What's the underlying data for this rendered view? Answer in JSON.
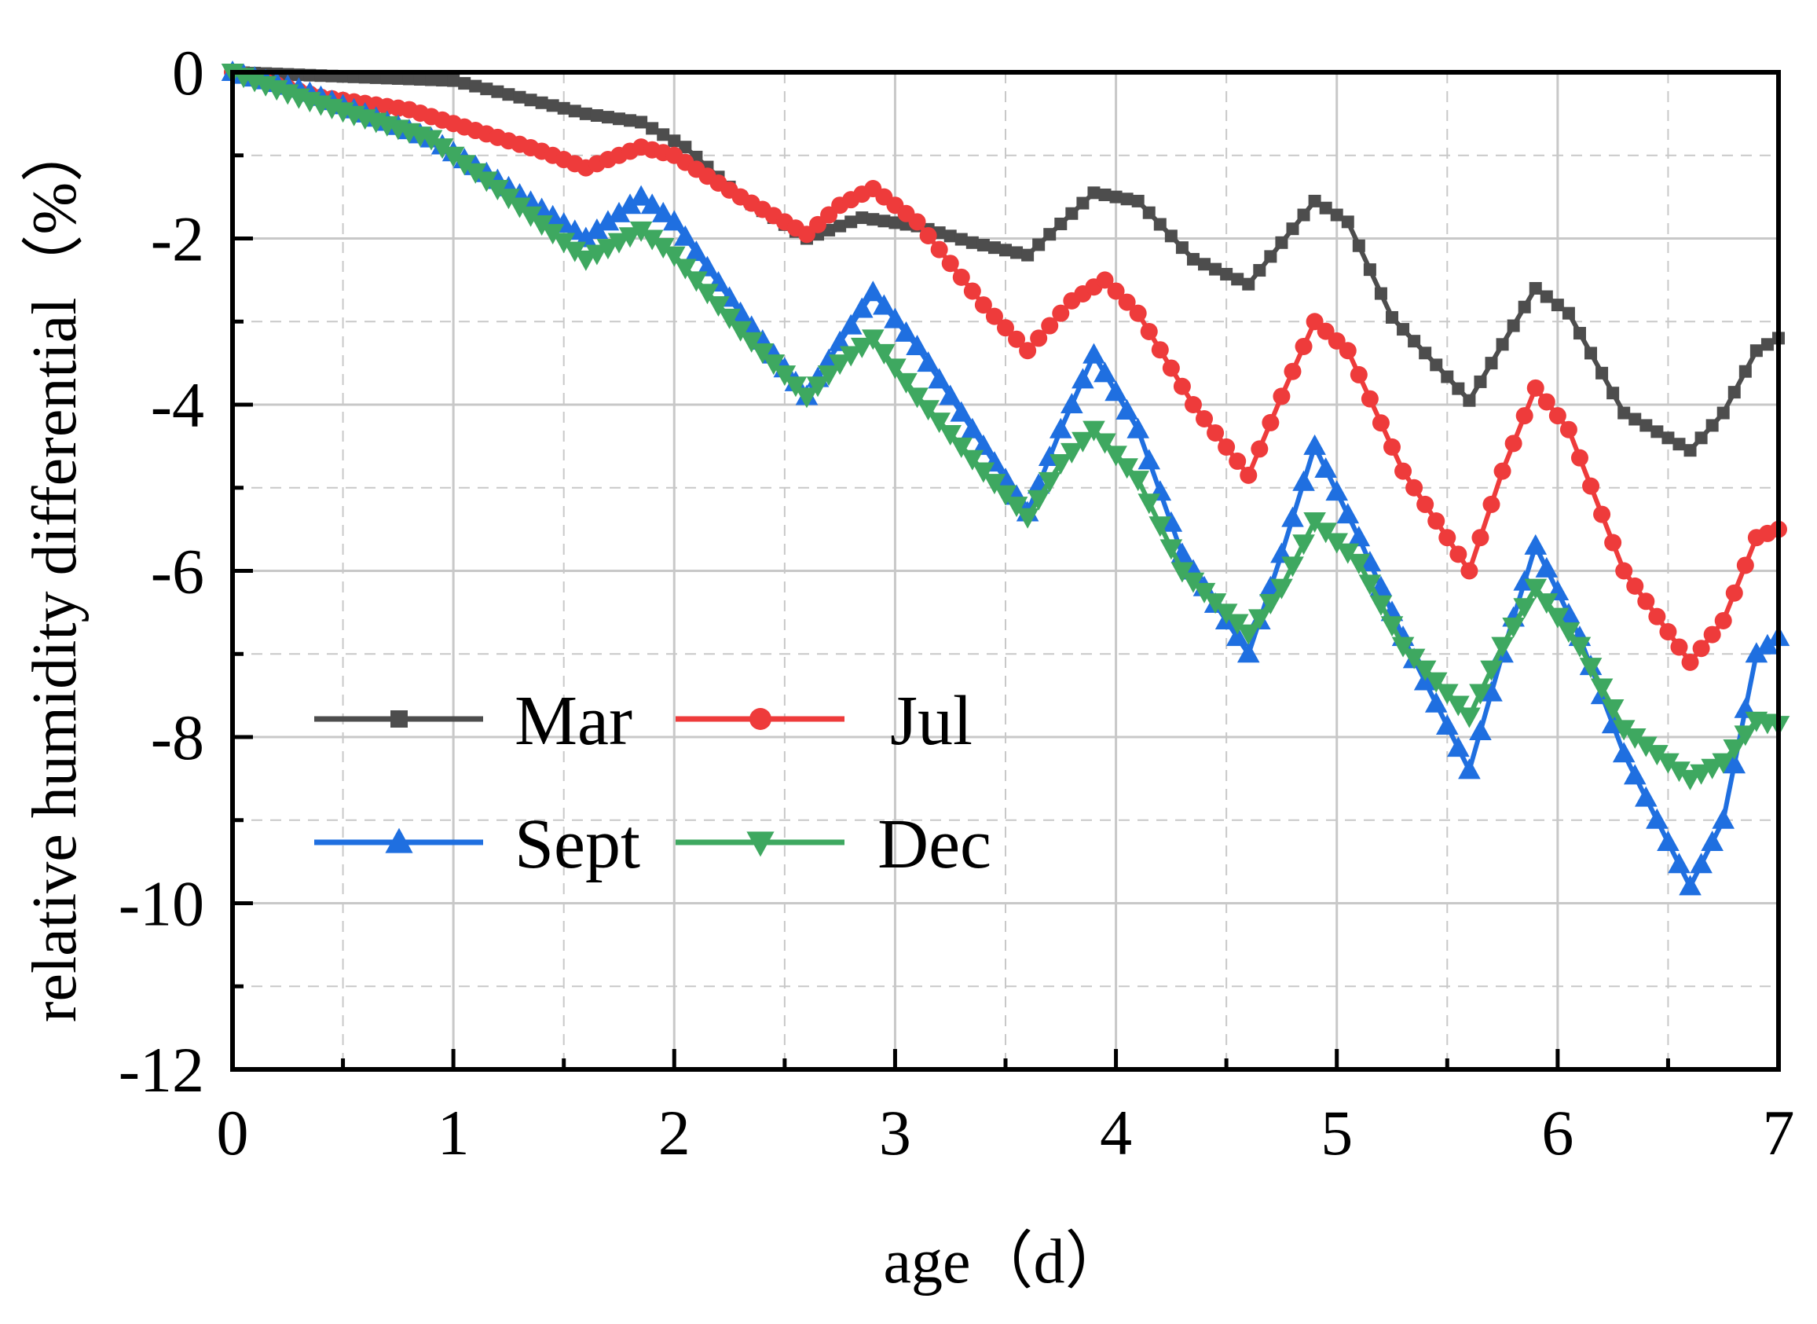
{
  "chart_data": {
    "type": "line",
    "title": "",
    "xlabel": "age（d）",
    "ylabel": "relative humidity differential（%）",
    "xlim": [
      0,
      7
    ],
    "ylim": [
      -12,
      0
    ],
    "xticks": [
      "0",
      "1",
      "2",
      "3",
      "4",
      "5",
      "6",
      "7"
    ],
    "yticks": [
      "0",
      "-2",
      "-4",
      "-6",
      "-8",
      "-10",
      "-12"
    ],
    "grid": true,
    "legend_position": "lower-left",
    "series": [
      {
        "name": "Mar",
        "color": "#4d4d4d",
        "marker": "square",
        "points": [
          [
            0,
            0
          ],
          [
            0.5,
            -0.05
          ],
          [
            1,
            -0.1
          ],
          [
            1.3,
            -0.3
          ],
          [
            1.6,
            -0.5
          ],
          [
            1.85,
            -0.6
          ],
          [
            2.05,
            -0.9
          ],
          [
            2.3,
            -1.5
          ],
          [
            2.6,
            -2.0
          ],
          [
            2.85,
            -1.75
          ],
          [
            3.1,
            -1.85
          ],
          [
            3.35,
            -2.05
          ],
          [
            3.6,
            -2.2
          ],
          [
            3.9,
            -1.45
          ],
          [
            4.1,
            -1.55
          ],
          [
            4.35,
            -2.25
          ],
          [
            4.6,
            -2.55
          ],
          [
            4.9,
            -1.55
          ],
          [
            5.05,
            -1.8
          ],
          [
            5.25,
            -2.95
          ],
          [
            5.6,
            -3.95
          ],
          [
            5.9,
            -2.6
          ],
          [
            6.05,
            -2.9
          ],
          [
            6.3,
            -4.1
          ],
          [
            6.6,
            -4.55
          ],
          [
            6.75,
            -4.1
          ],
          [
            6.9,
            -3.35
          ],
          [
            7,
            -3.2
          ]
        ]
      },
      {
        "name": "Jul",
        "color": "#ee3b3b",
        "marker": "circle",
        "points": [
          [
            0,
            0
          ],
          [
            0.4,
            -0.3
          ],
          [
            0.8,
            -0.45
          ],
          [
            1.1,
            -0.7
          ],
          [
            1.4,
            -0.95
          ],
          [
            1.6,
            -1.15
          ],
          [
            1.85,
            -0.9
          ],
          [
            2.0,
            -1.0
          ],
          [
            2.3,
            -1.5
          ],
          [
            2.6,
            -1.95
          ],
          [
            2.75,
            -1.6
          ],
          [
            2.9,
            -1.4
          ],
          [
            3.1,
            -1.8
          ],
          [
            3.4,
            -2.8
          ],
          [
            3.6,
            -3.35
          ],
          [
            3.8,
            -2.75
          ],
          [
            3.95,
            -2.5
          ],
          [
            4.1,
            -2.9
          ],
          [
            4.35,
            -4.0
          ],
          [
            4.6,
            -4.85
          ],
          [
            4.75,
            -3.9
          ],
          [
            4.9,
            -3.0
          ],
          [
            5.05,
            -3.35
          ],
          [
            5.3,
            -4.8
          ],
          [
            5.6,
            -6.0
          ],
          [
            5.75,
            -4.8
          ],
          [
            5.9,
            -3.8
          ],
          [
            6.05,
            -4.3
          ],
          [
            6.3,
            -6.0
          ],
          [
            6.6,
            -7.1
          ],
          [
            6.75,
            -6.6
          ],
          [
            6.9,
            -5.6
          ],
          [
            7,
            -5.5
          ]
        ]
      },
      {
        "name": "Sept",
        "color": "#1f6fe0",
        "marker": "triangle-up",
        "points": [
          [
            0,
            0
          ],
          [
            0.3,
            -0.2
          ],
          [
            0.6,
            -0.5
          ],
          [
            0.9,
            -0.8
          ],
          [
            1.2,
            -1.3
          ],
          [
            1.6,
            -2.0
          ],
          [
            1.85,
            -1.5
          ],
          [
            2.0,
            -1.8
          ],
          [
            2.3,
            -2.9
          ],
          [
            2.6,
            -3.9
          ],
          [
            2.75,
            -3.25
          ],
          [
            2.9,
            -2.65
          ],
          [
            3.1,
            -3.3
          ],
          [
            3.4,
            -4.5
          ],
          [
            3.6,
            -5.3
          ],
          [
            3.75,
            -4.3
          ],
          [
            3.9,
            -3.4
          ],
          [
            4.1,
            -4.3
          ],
          [
            4.3,
            -5.8
          ],
          [
            4.6,
            -7.0
          ],
          [
            4.75,
            -5.8
          ],
          [
            4.9,
            -4.5
          ],
          [
            5.1,
            -5.6
          ],
          [
            5.3,
            -6.8
          ],
          [
            5.6,
            -8.4
          ],
          [
            5.75,
            -7.0
          ],
          [
            5.9,
            -5.7
          ],
          [
            6.1,
            -6.8
          ],
          [
            6.3,
            -8.2
          ],
          [
            6.6,
            -9.8
          ],
          [
            6.75,
            -9.0
          ],
          [
            6.9,
            -7.0
          ],
          [
            7,
            -6.8
          ]
        ]
      },
      {
        "name": "Dec",
        "color": "#3ea860",
        "marker": "triangle-down",
        "points": [
          [
            0,
            0
          ],
          [
            0.3,
            -0.3
          ],
          [
            0.6,
            -0.55
          ],
          [
            0.9,
            -0.8
          ],
          [
            1.2,
            -1.4
          ],
          [
            1.6,
            -2.25
          ],
          [
            1.85,
            -1.9
          ],
          [
            2.0,
            -2.2
          ],
          [
            2.3,
            -3.1
          ],
          [
            2.6,
            -3.9
          ],
          [
            2.75,
            -3.5
          ],
          [
            2.9,
            -3.2
          ],
          [
            3.1,
            -3.9
          ],
          [
            3.4,
            -4.8
          ],
          [
            3.6,
            -5.35
          ],
          [
            3.75,
            -4.7
          ],
          [
            3.9,
            -4.3
          ],
          [
            4.1,
            -4.9
          ],
          [
            4.3,
            -6.0
          ],
          [
            4.6,
            -6.75
          ],
          [
            4.75,
            -6.2
          ],
          [
            4.9,
            -5.4
          ],
          [
            5.1,
            -5.9
          ],
          [
            5.3,
            -6.9
          ],
          [
            5.6,
            -7.75
          ],
          [
            5.75,
            -6.9
          ],
          [
            5.9,
            -6.2
          ],
          [
            6.1,
            -6.9
          ],
          [
            6.3,
            -7.9
          ],
          [
            6.6,
            -8.5
          ],
          [
            6.75,
            -8.3
          ],
          [
            6.9,
            -7.8
          ],
          [
            7,
            -7.85
          ]
        ]
      }
    ]
  }
}
